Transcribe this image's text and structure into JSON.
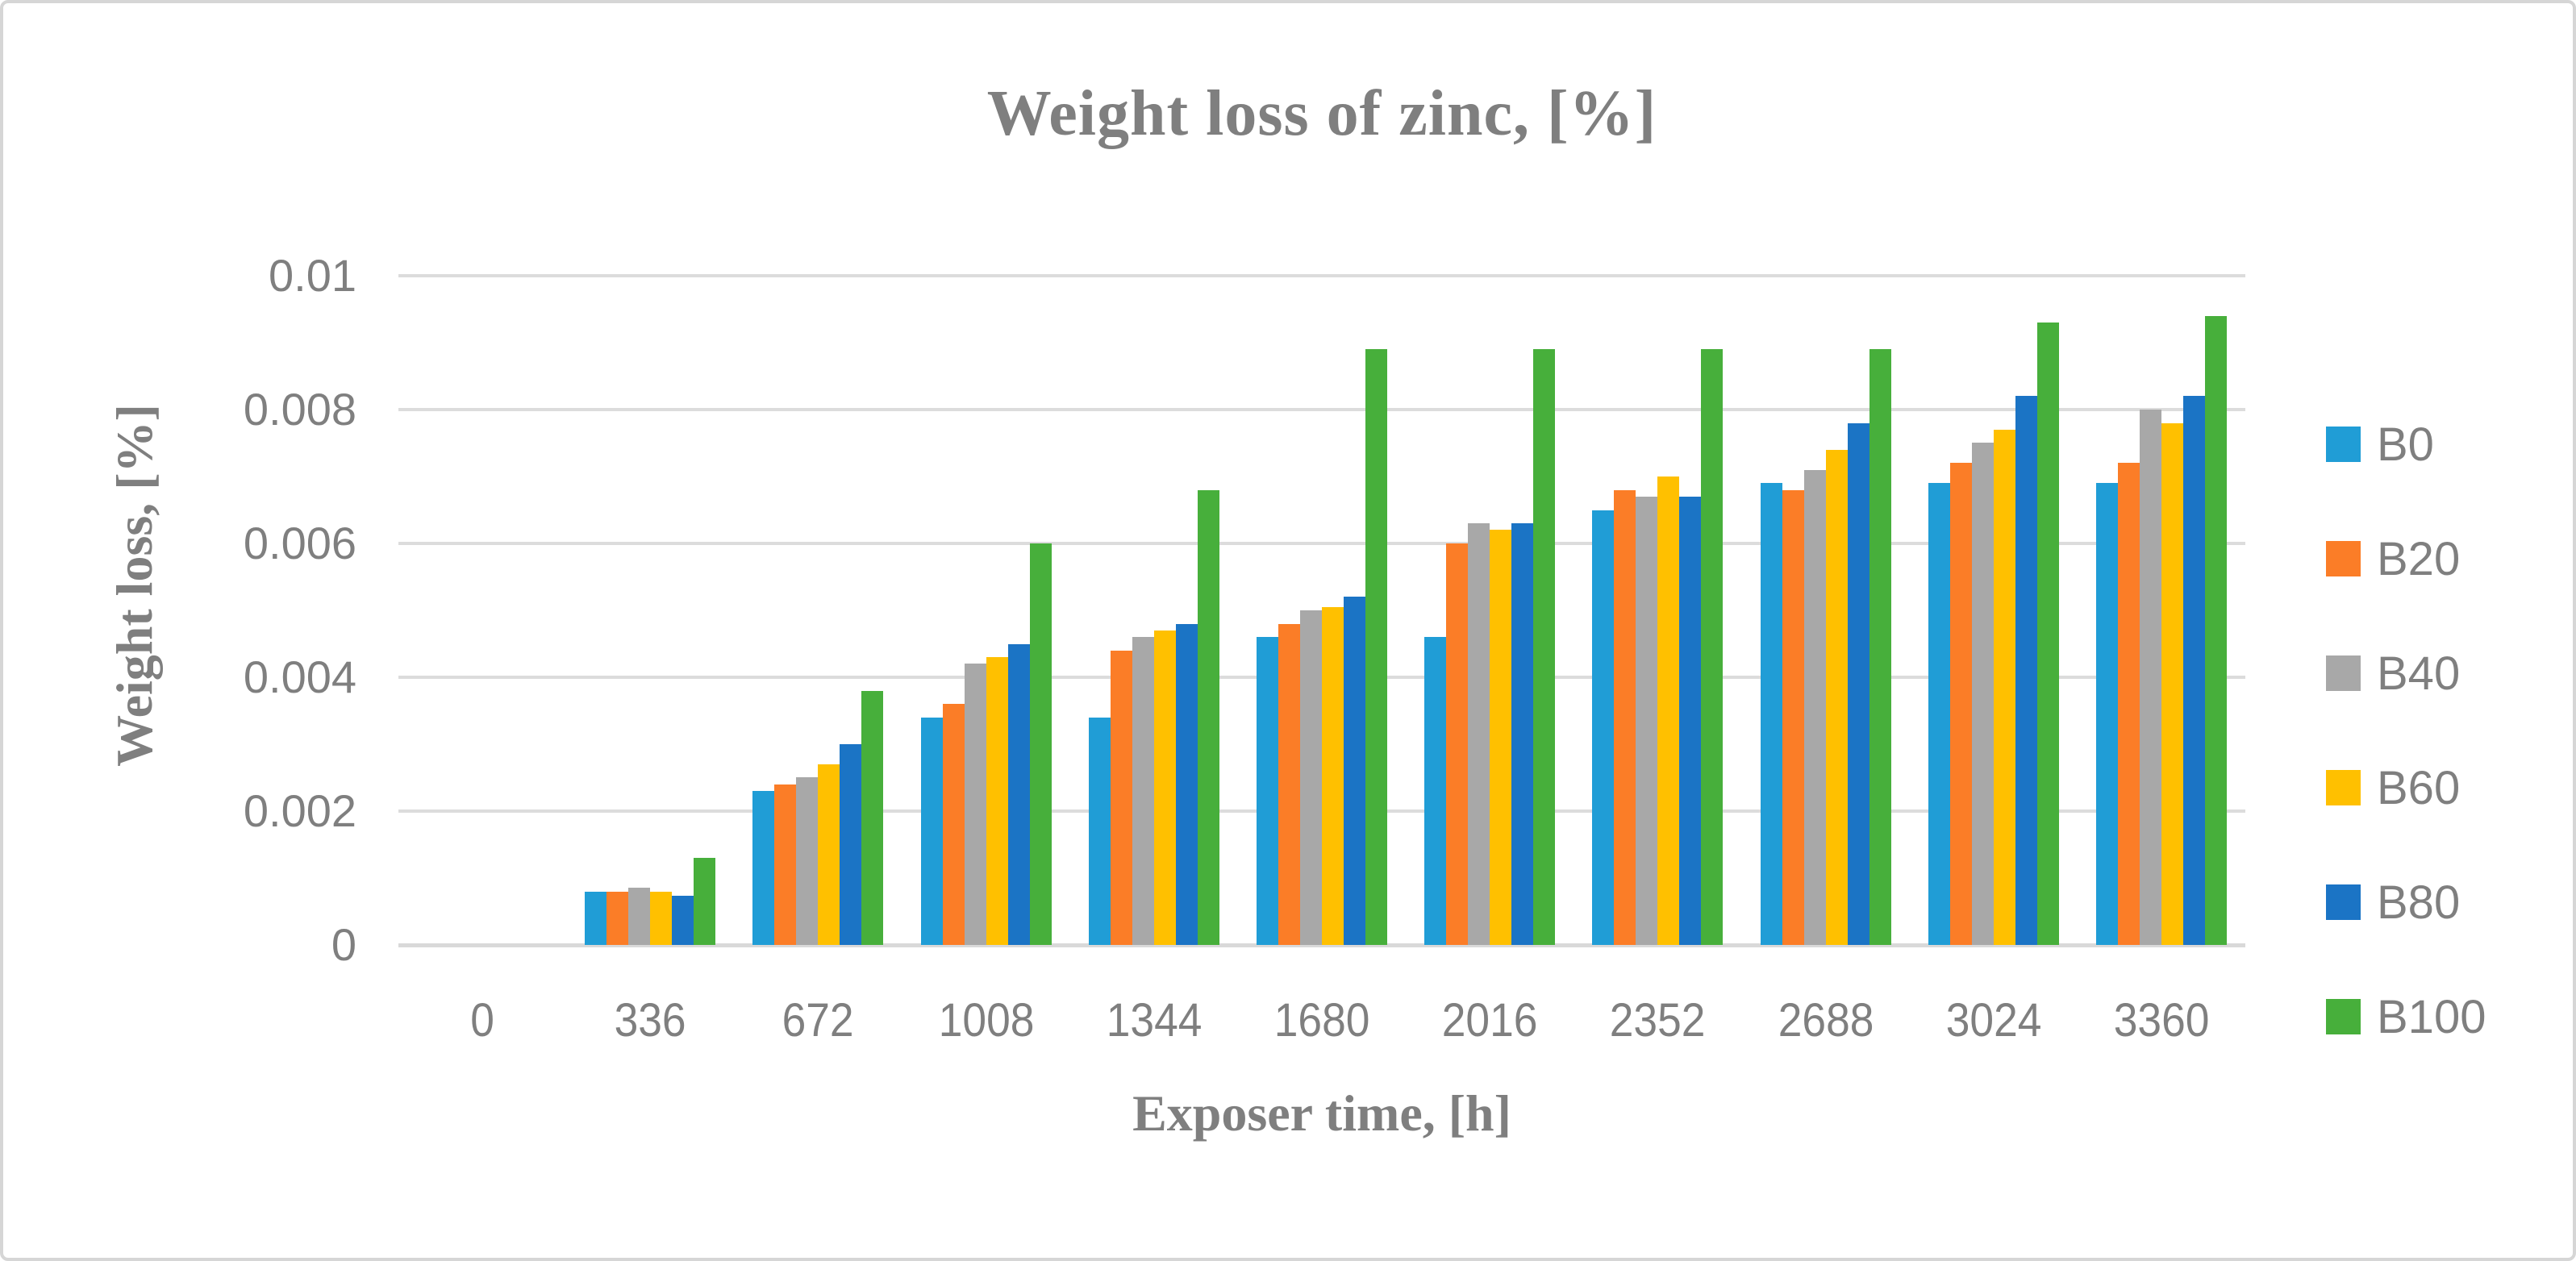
{
  "frame": {
    "background": "#FFFFFF",
    "border_color": "#D6D6D6"
  },
  "colors": {
    "text_gray": "#7F7F7F",
    "gridline": "#DCDCDC",
    "axis_line": "#D9D9D9"
  },
  "chart_data": {
    "type": "bar",
    "title": "Weight loss of zinc, [%]",
    "xlabel": "Exposer time, [h]",
    "ylabel": "Weight loss, [%]",
    "categories": [
      "0",
      "336",
      "672",
      "1008",
      "1344",
      "1680",
      "2016",
      "2352",
      "2688",
      "3024",
      "3360"
    ],
    "y_ticks": [
      "0",
      "0.002",
      "0.004",
      "0.006",
      "0.008",
      "0.01"
    ],
    "ylim": [
      0,
      0.01
    ],
    "grid": true,
    "legend_position": "right",
    "series": [
      {
        "name": "B0",
        "color": "#209DD6",
        "values": [
          0,
          0.0008,
          0.0023,
          0.0034,
          0.0034,
          0.0046,
          0.0046,
          0.0065,
          0.0069,
          0.0069,
          0.0069
        ]
      },
      {
        "name": "B20",
        "color": "#FB7D27",
        "values": [
          0,
          0.0008,
          0.0024,
          0.0036,
          0.0044,
          0.0048,
          0.006,
          0.0068,
          0.0068,
          0.0072,
          0.0072
        ]
      },
      {
        "name": "B40",
        "color": "#A8A8A8",
        "values": [
          0,
          0.00085,
          0.0025,
          0.0042,
          0.0046,
          0.005,
          0.0063,
          0.0067,
          0.0071,
          0.0075,
          0.008
        ]
      },
      {
        "name": "B60",
        "color": "#FFC000",
        "values": [
          0,
          0.0008,
          0.0027,
          0.0043,
          0.0047,
          0.00505,
          0.0062,
          0.007,
          0.0074,
          0.0077,
          0.0078
        ]
      },
      {
        "name": "B80",
        "color": "#1B74C5",
        "values": [
          0,
          0.00073,
          0.003,
          0.0045,
          0.0048,
          0.0052,
          0.0063,
          0.0067,
          0.0078,
          0.0082,
          0.0082
        ]
      },
      {
        "name": "B100",
        "color": "#47AF3B",
        "values": [
          0,
          0.0013,
          0.0038,
          0.006,
          0.0068,
          0.0089,
          0.0089,
          0.0089,
          0.0089,
          0.0093,
          0.0094
        ]
      }
    ]
  }
}
